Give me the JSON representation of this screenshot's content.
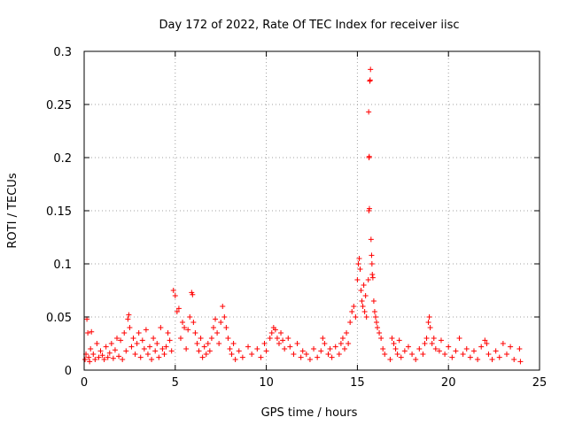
{
  "chart_data": {
    "type": "scatter",
    "title": "Day 172 of 2022, Rate Of TEC Index for receiver iisc",
    "xlabel": "GPS time / hours",
    "ylabel": "ROTI / TECUs",
    "xlim": [
      0,
      25
    ],
    "ylim": [
      0,
      0.3
    ],
    "x_ticks": [
      "0",
      "5",
      "10",
      "15",
      "20",
      "25"
    ],
    "y_ticks": [
      "0",
      "0.05",
      "0.1",
      "0.15",
      "0.2",
      "0.25",
      "0.3"
    ],
    "grid": true,
    "marker": "+",
    "series": [
      {
        "name": "ROTI",
        "color": "#ff0000",
        "points": [
          [
            0.05,
            0.01
          ],
          [
            0.1,
            0.015
          ],
          [
            0.15,
            0.048
          ],
          [
            0.2,
            0.035
          ],
          [
            0.25,
            0.012
          ],
          [
            0.3,
            0.008
          ],
          [
            0.35,
            0.02
          ],
          [
            0.4,
            0.036
          ],
          [
            0.5,
            0.015
          ],
          [
            0.6,
            0.01
          ],
          [
            0.7,
            0.025
          ],
          [
            0.8,
            0.012
          ],
          [
            0.9,
            0.018
          ],
          [
            1.0,
            0.014
          ],
          [
            1.1,
            0.01
          ],
          [
            1.2,
            0.022
          ],
          [
            1.3,
            0.012
          ],
          [
            1.4,
            0.016
          ],
          [
            1.5,
            0.025
          ],
          [
            1.6,
            0.011
          ],
          [
            1.7,
            0.019
          ],
          [
            1.8,
            0.03
          ],
          [
            1.9,
            0.013
          ],
          [
            2.0,
            0.028
          ],
          [
            2.1,
            0.01
          ],
          [
            2.2,
            0.035
          ],
          [
            2.3,
            0.018
          ],
          [
            2.4,
            0.048
          ],
          [
            2.45,
            0.052
          ],
          [
            2.5,
            0.04
          ],
          [
            2.6,
            0.022
          ],
          [
            2.7,
            0.03
          ],
          [
            2.8,
            0.015
          ],
          [
            2.9,
            0.025
          ],
          [
            3.0,
            0.035
          ],
          [
            3.1,
            0.012
          ],
          [
            3.2,
            0.028
          ],
          [
            3.3,
            0.02
          ],
          [
            3.4,
            0.038
          ],
          [
            3.5,
            0.015
          ],
          [
            3.6,
            0.022
          ],
          [
            3.7,
            0.01
          ],
          [
            3.8,
            0.03
          ],
          [
            3.9,
            0.018
          ],
          [
            4.0,
            0.025
          ],
          [
            4.1,
            0.012
          ],
          [
            4.2,
            0.04
          ],
          [
            4.3,
            0.02
          ],
          [
            4.4,
            0.015
          ],
          [
            4.5,
            0.022
          ],
          [
            4.6,
            0.035
          ],
          [
            4.7,
            0.028
          ],
          [
            4.8,
            0.018
          ],
          [
            4.9,
            0.075
          ],
          [
            5.0,
            0.07
          ],
          [
            5.1,
            0.055
          ],
          [
            5.2,
            0.058
          ],
          [
            5.3,
            0.03
          ],
          [
            5.4,
            0.045
          ],
          [
            5.5,
            0.04
          ],
          [
            5.6,
            0.02
          ],
          [
            5.7,
            0.038
          ],
          [
            5.8,
            0.05
          ],
          [
            5.9,
            0.073
          ],
          [
            5.95,
            0.071
          ],
          [
            6.0,
            0.045
          ],
          [
            6.1,
            0.035
          ],
          [
            6.2,
            0.025
          ],
          [
            6.3,
            0.018
          ],
          [
            6.4,
            0.03
          ],
          [
            6.5,
            0.012
          ],
          [
            6.6,
            0.022
          ],
          [
            6.7,
            0.015
          ],
          [
            6.8,
            0.025
          ],
          [
            6.9,
            0.018
          ],
          [
            7.0,
            0.03
          ],
          [
            7.1,
            0.04
          ],
          [
            7.2,
            0.048
          ],
          [
            7.3,
            0.035
          ],
          [
            7.4,
            0.025
          ],
          [
            7.5,
            0.045
          ],
          [
            7.6,
            0.06
          ],
          [
            7.7,
            0.05
          ],
          [
            7.8,
            0.04
          ],
          [
            7.9,
            0.03
          ],
          [
            8.0,
            0.02
          ],
          [
            8.1,
            0.015
          ],
          [
            8.2,
            0.025
          ],
          [
            8.3,
            0.01
          ],
          [
            8.5,
            0.018
          ],
          [
            8.7,
            0.012
          ],
          [
            9.0,
            0.022
          ],
          [
            9.2,
            0.015
          ],
          [
            9.5,
            0.02
          ],
          [
            9.7,
            0.012
          ],
          [
            9.9,
            0.025
          ],
          [
            10.0,
            0.018
          ],
          [
            10.2,
            0.03
          ],
          [
            10.3,
            0.035
          ],
          [
            10.4,
            0.04
          ],
          [
            10.5,
            0.038
          ],
          [
            10.6,
            0.03
          ],
          [
            10.7,
            0.025
          ],
          [
            10.8,
            0.035
          ],
          [
            10.9,
            0.028
          ],
          [
            11.0,
            0.02
          ],
          [
            11.2,
            0.03
          ],
          [
            11.3,
            0.022
          ],
          [
            11.5,
            0.015
          ],
          [
            11.7,
            0.025
          ],
          [
            11.9,
            0.012
          ],
          [
            12.0,
            0.018
          ],
          [
            12.2,
            0.015
          ],
          [
            12.4,
            0.01
          ],
          [
            12.6,
            0.02
          ],
          [
            12.8,
            0.012
          ],
          [
            13.0,
            0.018
          ],
          [
            13.1,
            0.03
          ],
          [
            13.2,
            0.025
          ],
          [
            13.4,
            0.015
          ],
          [
            13.5,
            0.02
          ],
          [
            13.6,
            0.012
          ],
          [
            13.8,
            0.022
          ],
          [
            14.0,
            0.015
          ],
          [
            14.1,
            0.025
          ],
          [
            14.2,
            0.03
          ],
          [
            14.3,
            0.02
          ],
          [
            14.4,
            0.035
          ],
          [
            14.5,
            0.025
          ],
          [
            14.6,
            0.045
          ],
          [
            14.7,
            0.055
          ],
          [
            14.8,
            0.06
          ],
          [
            14.9,
            0.05
          ],
          [
            15.0,
            0.085
          ],
          [
            15.05,
            0.1
          ],
          [
            15.1,
            0.105
          ],
          [
            15.15,
            0.095
          ],
          [
            15.2,
            0.075
          ],
          [
            15.25,
            0.065
          ],
          [
            15.3,
            0.06
          ],
          [
            15.35,
            0.08
          ],
          [
            15.4,
            0.055
          ],
          [
            15.45,
            0.07
          ],
          [
            15.5,
            0.05
          ],
          [
            15.6,
            0.085
          ],
          [
            15.62,
            0.243
          ],
          [
            15.63,
            0.15
          ],
          [
            15.64,
            0.2
          ],
          [
            15.65,
            0.201
          ],
          [
            15.66,
            0.152
          ],
          [
            15.68,
            0.272
          ],
          [
            15.7,
            0.273
          ],
          [
            15.72,
            0.283
          ],
          [
            15.75,
            0.123
          ],
          [
            15.78,
            0.108
          ],
          [
            15.8,
            0.1
          ],
          [
            15.82,
            0.09
          ],
          [
            15.85,
            0.087
          ],
          [
            15.9,
            0.065
          ],
          [
            15.95,
            0.055
          ],
          [
            16.0,
            0.05
          ],
          [
            16.05,
            0.045
          ],
          [
            16.1,
            0.04
          ],
          [
            16.2,
            0.035
          ],
          [
            16.3,
            0.03
          ],
          [
            16.4,
            0.02
          ],
          [
            16.5,
            0.015
          ],
          [
            16.8,
            0.01
          ],
          [
            16.9,
            0.03
          ],
          [
            17.0,
            0.025
          ],
          [
            17.1,
            0.02
          ],
          [
            17.2,
            0.015
          ],
          [
            17.3,
            0.028
          ],
          [
            17.4,
            0.012
          ],
          [
            17.6,
            0.018
          ],
          [
            17.8,
            0.022
          ],
          [
            18.0,
            0.015
          ],
          [
            18.2,
            0.01
          ],
          [
            18.4,
            0.02
          ],
          [
            18.6,
            0.015
          ],
          [
            18.7,
            0.025
          ],
          [
            18.8,
            0.03
          ],
          [
            18.9,
            0.045
          ],
          [
            18.95,
            0.05
          ],
          [
            19.0,
            0.04
          ],
          [
            19.1,
            0.025
          ],
          [
            19.2,
            0.03
          ],
          [
            19.3,
            0.02
          ],
          [
            19.5,
            0.018
          ],
          [
            19.6,
            0.028
          ],
          [
            19.8,
            0.015
          ],
          [
            20.0,
            0.022
          ],
          [
            20.2,
            0.012
          ],
          [
            20.4,
            0.018
          ],
          [
            20.6,
            0.03
          ],
          [
            20.8,
            0.015
          ],
          [
            21.0,
            0.02
          ],
          [
            21.2,
            0.012
          ],
          [
            21.4,
            0.018
          ],
          [
            21.6,
            0.01
          ],
          [
            21.8,
            0.022
          ],
          [
            22.0,
            0.028
          ],
          [
            22.1,
            0.025
          ],
          [
            22.2,
            0.015
          ],
          [
            22.4,
            0.01
          ],
          [
            22.6,
            0.018
          ],
          [
            22.8,
            0.012
          ],
          [
            23.0,
            0.025
          ],
          [
            23.2,
            0.015
          ],
          [
            23.4,
            0.022
          ],
          [
            23.6,
            0.01
          ],
          [
            23.9,
            0.02
          ],
          [
            23.95,
            0.008
          ]
        ]
      }
    ]
  }
}
